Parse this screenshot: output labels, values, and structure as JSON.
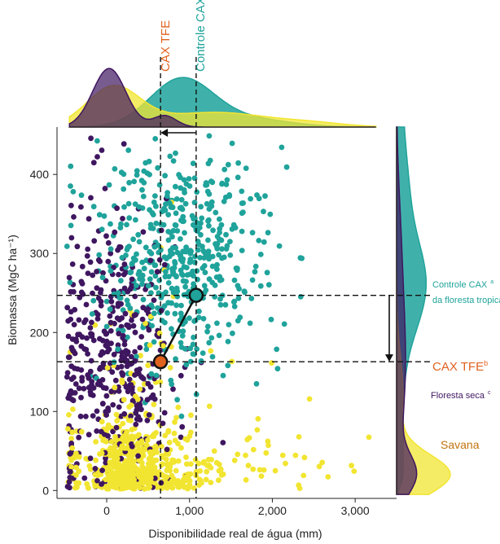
{
  "colors": {
    "control": "#1fa39b",
    "tfe": "#e0621f",
    "savanna": "#f2e531",
    "dry": "#3f1660",
    "savanna_label": "#c27410",
    "axis": "#222222"
  },
  "chart_data": {
    "type": "scatter",
    "title": "",
    "xlabel": "Disponibilidade real de água (mm)",
    "ylabel": "Biomassa (MgC ha⁻¹)",
    "xlim": [
      -600,
      3500
    ],
    "ylim": [
      -10,
      460
    ],
    "xticks": [
      0,
      1000,
      2000,
      3000
    ],
    "xtick_labels": [
      "0",
      "1,000",
      "2,000",
      "3,000"
    ],
    "yticks": [
      0,
      100,
      200,
      300,
      400
    ],
    "ytick_labels": [
      "0",
      "100",
      "200",
      "300",
      "400"
    ],
    "series": [
      {
        "key": "control",
        "color": "#1fa39b",
        "x_center": 900,
        "x_spread": 520,
        "y_center": 300,
        "y_spread": 75
      },
      {
        "key": "dry",
        "color": "#3f1660",
        "x_center": 100,
        "x_spread": 380,
        "y_center": 160,
        "y_spread": 90
      },
      {
        "key": "savanna",
        "color": "#f2e531",
        "x_center": 350,
        "x_spread": 650,
        "y_center": 30,
        "y_spread": 40
      }
    ],
    "reference_lines": {
      "x_control": 1080,
      "x_tfe": 650,
      "y_control": 247,
      "y_tfe": 163
    },
    "highlight_points": [
      {
        "key": "control",
        "x": 1080,
        "y": 247,
        "color": "#1fa39b"
      },
      {
        "key": "tfe",
        "x": 650,
        "y": 163,
        "color": "#e0621f"
      }
    ],
    "annotations": {
      "top_control": "Controle CAX",
      "top_tfe": "CAX TFE",
      "right_control": "Controle CAX",
      "right_control_sup": "a",
      "right_control_line2": "da floresta tropical",
      "right_tfe": "CAX TFE",
      "right_tfe_sup": "b",
      "right_dry": "Floresta seca",
      "right_dry_sup": "c",
      "right_savanna": "Savana"
    }
  }
}
